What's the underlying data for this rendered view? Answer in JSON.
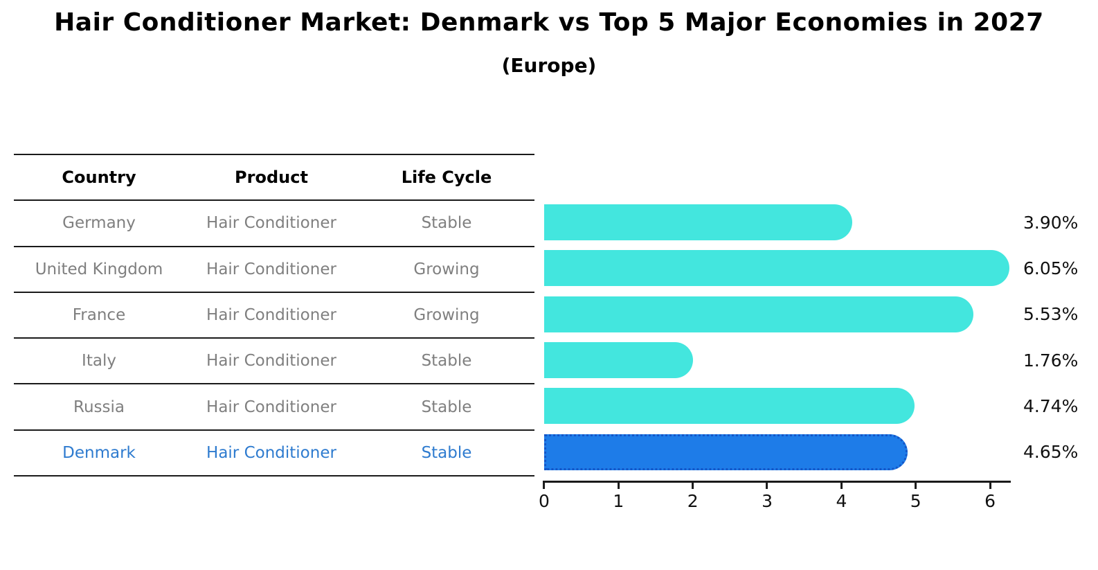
{
  "title": "Hair Conditioner Market: Denmark vs Top 5 Major Economies in 2027",
  "subtitle": "(Europe)",
  "table": {
    "headers": [
      "Country",
      "Product",
      "Life Cycle"
    ],
    "rows": [
      {
        "country": "Germany",
        "product": "Hair Conditioner",
        "life_cycle": "Stable",
        "value": 3.9,
        "label": "3.90%",
        "highlight": false
      },
      {
        "country": "United Kingdom",
        "product": "Hair Conditioner",
        "life_cycle": "Growing",
        "value": 6.05,
        "label": "6.05%",
        "highlight": false
      },
      {
        "country": "France",
        "product": "Hair Conditioner",
        "life_cycle": "Growing",
        "value": 5.53,
        "label": "5.53%",
        "highlight": false
      },
      {
        "country": "Italy",
        "product": "Hair Conditioner",
        "life_cycle": "Stable",
        "value": 1.76,
        "label": "1.76%",
        "highlight": false
      },
      {
        "country": "Russia",
        "product": "Hair Conditioner",
        "life_cycle": "Stable",
        "value": 4.74,
        "label": "4.74%",
        "highlight": false
      },
      {
        "country": "Denmark",
        "product": "Hair Conditioner",
        "life_cycle": "Stable",
        "value": 4.65,
        "label": "4.65%",
        "highlight": true
      }
    ]
  },
  "chart_data": {
    "type": "bar",
    "orientation": "horizontal",
    "title": "Hair Conditioner Market: Denmark vs Top 5 Major Economies in 2027 (Europe)",
    "categories": [
      "Germany",
      "United Kingdom",
      "France",
      "Italy",
      "Russia",
      "Denmark"
    ],
    "values": [
      3.9,
      6.05,
      5.53,
      1.76,
      4.74,
      4.65
    ],
    "value_labels": [
      "3.90%",
      "6.05%",
      "5.53%",
      "1.76%",
      "4.74%",
      "4.65%"
    ],
    "xlabel": "",
    "ylabel": "",
    "xlim": [
      0,
      6.26
    ],
    "xticks": [
      {
        "label": "0",
        "value": 0
      },
      {
        "label": "1",
        "value": 1
      },
      {
        "label": "2",
        "value": 2
      },
      {
        "label": "3",
        "value": 3
      },
      {
        "label": "4",
        "value": 4
      },
      {
        "label": "5",
        "value": 5
      },
      {
        "label": "6",
        "value": 6
      }
    ],
    "grid": false,
    "legend": false,
    "highlight_category": "Denmark"
  },
  "colors": {
    "bar": "#43E6DE",
    "highlight_bar": "#1E7CE8",
    "highlight_bar_border": "#1456C8",
    "highlight_text": "#2E7BCF",
    "row_text": "#7F7F7F",
    "header_text": "#000000",
    "axis": "#1A1A1A"
  }
}
